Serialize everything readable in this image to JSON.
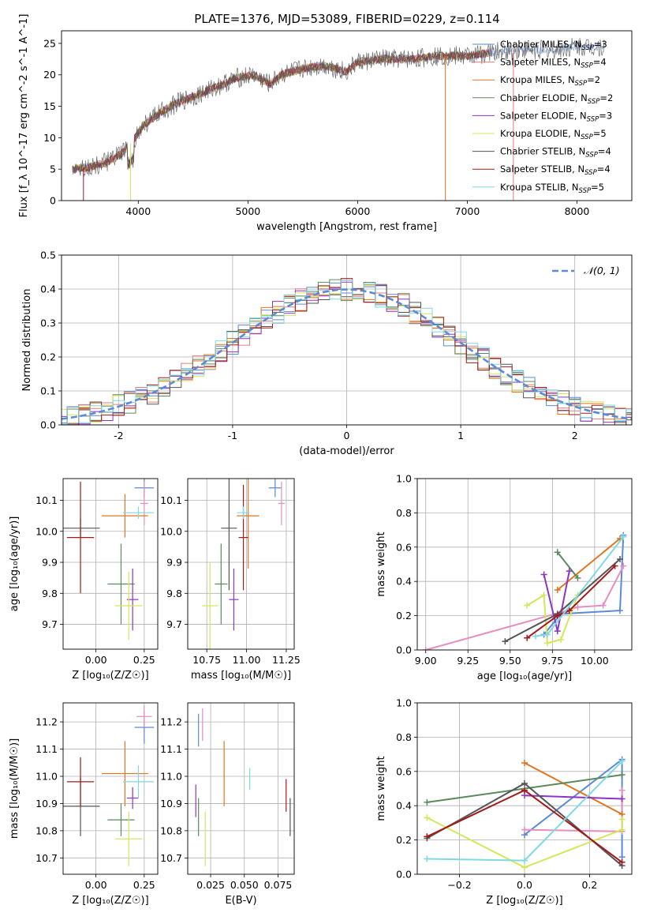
{
  "figure": {
    "title": "PLATE=1376, MJD=53089, FIBERID=0229, z=0.114"
  },
  "colors": {
    "Chabrier MILES": "#5b8ad6",
    "Salpeter MILES": "#e57c7c",
    "Kroupa MILES": "#e0761f",
    "Chabrier ELODIE": "#5a8a5c",
    "Salpeter ELODIE": "#8e34c4",
    "Kroupa ELODIE": "#d4e65b",
    "Chabrier STELIB": "#555555",
    "Salpeter STELIB": "#a31a1a",
    "Kroupa STELIB": "#7fd9e0",
    "pink": "#e58fc0",
    "normal": "#5b8ad6",
    "grid": "#b0b0b0"
  },
  "chart_data": [
    {
      "id": "spectrum",
      "type": "line",
      "xlabel": "wavelength [Angstrom, rest frame]",
      "ylabel": "Flux [f_λ 10^-17 erg cm^-2 s^-1 A^-1]",
      "xlim": [
        3300,
        8500
      ],
      "ylim": [
        0,
        27
      ],
      "xticks": [
        4000,
        5000,
        6000,
        7000,
        8000
      ],
      "yticks": [
        0,
        5,
        10,
        15,
        20,
        25
      ],
      "grid": false,
      "legend_position": "top-right",
      "legend": [
        {
          "label": "Chabrier MILES, N_SSP=3",
          "color_key": "Chabrier MILES"
        },
        {
          "label": "Salpeter MILES, N_SSP=4",
          "color_key": "Salpeter MILES"
        },
        {
          "label": "Kroupa MILES, N_SSP=2",
          "color_key": "Kroupa MILES"
        },
        {
          "label": "Chabrier ELODIE, N_SSP=2",
          "color_key": "Chabrier ELODIE"
        },
        {
          "label": "Salpeter ELODIE, N_SSP=3",
          "color_key": "Salpeter ELODIE"
        },
        {
          "label": "Kroupa ELODIE, N_SSP=5",
          "color_key": "Kroupa ELODIE"
        },
        {
          "label": "Chabrier STELIB, N_SSP=4",
          "color_key": "Chabrier STELIB"
        },
        {
          "label": "Salpeter STELIB, N_SSP=4",
          "color_key": "Salpeter STELIB"
        },
        {
          "label": "Kroupa STELIB, N_SSP=5",
          "color_key": "Kroupa STELIB"
        }
      ],
      "continuum": [
        [
          3400,
          5.0
        ],
        [
          3550,
          5.3
        ],
        [
          3700,
          6.0
        ],
        [
          3850,
          7.5
        ],
        [
          3950,
          9.5
        ],
        [
          4050,
          12.0
        ],
        [
          4200,
          14.0
        ],
        [
          4350,
          15.5
        ],
        [
          4500,
          16.5
        ],
        [
          4700,
          18.0
        ],
        [
          4900,
          19.5
        ],
        [
          5050,
          20.0
        ],
        [
          5200,
          18.5
        ],
        [
          5300,
          20.0
        ],
        [
          5500,
          21.0
        ],
        [
          5700,
          21.5
        ],
        [
          5900,
          20.5
        ],
        [
          6000,
          22.0
        ],
        [
          6200,
          22.5
        ],
        [
          6500,
          22.5
        ],
        [
          6700,
          23.0
        ],
        [
          7000,
          23.0
        ],
        [
          7200,
          23.5
        ],
        [
          7500,
          24.0
        ],
        [
          7800,
          24.0
        ],
        [
          8000,
          24.5
        ],
        [
          8250,
          24.5
        ]
      ],
      "spectrum_range": [
        3400,
        8250
      ]
    },
    {
      "id": "residuals",
      "type": "step-histogram",
      "xlabel": "(data-model)/error",
      "ylabel": "Normed distribution",
      "xlim": [
        -2.5,
        2.5
      ],
      "ylim": [
        0,
        0.5
      ],
      "xticks": [
        -2,
        -1,
        0,
        1,
        2
      ],
      "yticks": [
        0.0,
        0.1,
        0.2,
        0.3,
        0.4,
        0.5
      ],
      "grid": true,
      "legend_position": "top-right",
      "legend": [
        {
          "label": "𝒩(0, 1)",
          "color_key": "normal",
          "style": "dashed"
        }
      ],
      "series": [
        {
          "name": "Chabrier MILES",
          "color_key": "Chabrier MILES"
        },
        {
          "name": "Salpeter MILES",
          "color_key": "Salpeter MILES"
        },
        {
          "name": "Kroupa MILES",
          "color_key": "Kroupa MILES"
        },
        {
          "name": "Chabrier ELODIE",
          "color_key": "Chabrier ELODIE"
        },
        {
          "name": "Salpeter ELODIE",
          "color_key": "Salpeter ELODIE"
        },
        {
          "name": "Kroupa ELODIE",
          "color_key": "Kroupa ELODIE"
        },
        {
          "name": "Chabrier STELIB",
          "color_key": "Chabrier STELIB"
        },
        {
          "name": "Salpeter STELIB",
          "color_key": "Salpeter STELIB"
        },
        {
          "name": "Kroupa STELIB",
          "color_key": "Kroupa STELIB"
        }
      ],
      "bin_width": 0.1
    },
    {
      "id": "age_vs_Z",
      "type": "scatter",
      "xlabel": "Z [log₁₀(Z/Z☉)]",
      "ylabel": "age  [log₁₀(age/yr)]",
      "xlim": [
        -0.17,
        0.32
      ],
      "ylim": [
        9.62,
        10.17
      ],
      "xticks": [
        0.0,
        0.25
      ],
      "xticklabels": [
        "0.00",
        "0.25"
      ],
      "yticks": [
        9.7,
        9.8,
        9.9,
        10.0,
        10.1
      ],
      "grid": true,
      "points": [
        {
          "x": 0.25,
          "y": 10.14,
          "xerr": 0.05,
          "yerr": 0.03,
          "color_key": "Chabrier MILES"
        },
        {
          "x": 0.25,
          "y": 10.09,
          "xerr": 0.02,
          "yerr": 0.07,
          "color_key": "pink"
        },
        {
          "x": 0.15,
          "y": 10.05,
          "xerr": 0.12,
          "yerr": 0.07,
          "color_key": "Kroupa MILES"
        },
        {
          "x": 0.13,
          "y": 9.83,
          "xerr": 0.07,
          "yerr": 0.13,
          "color_key": "Chabrier ELODIE"
        },
        {
          "x": 0.19,
          "y": 9.78,
          "xerr": 0.03,
          "yerr": 0.1,
          "color_key": "Salpeter ELODIE"
        },
        {
          "x": 0.17,
          "y": 9.76,
          "xerr": 0.07,
          "yerr": 0.11,
          "color_key": "Kroupa ELODIE"
        },
        {
          "x": -0.08,
          "y": 10.01,
          "xerr": 0.1,
          "yerr": 0.03,
          "color_key": "Chabrier STELIB"
        },
        {
          "x": -0.08,
          "y": 9.98,
          "xerr": 0.07,
          "yerr": 0.18,
          "color_key": "Salpeter STELIB"
        },
        {
          "x": 0.22,
          "y": 10.06,
          "xerr": 0.08,
          "yerr": 0.02,
          "color_key": "Kroupa STELIB"
        }
      ]
    },
    {
      "id": "age_vs_mass",
      "type": "scatter",
      "xlabel": "mass [log₁₀(M/M☉)]",
      "ylabel": "",
      "xlim": [
        10.63,
        11.3
      ],
      "ylim": [
        9.62,
        10.17
      ],
      "xticks": [
        10.75,
        11.0,
        11.25
      ],
      "xticklabels": [
        "10.75",
        "11.00",
        "11.25"
      ],
      "yticks": [
        9.7,
        9.8,
        9.9,
        10.0,
        10.1
      ],
      "grid": true,
      "points": [
        {
          "x": 11.18,
          "y": 10.14,
          "xerr": 0.04,
          "yerr": 0.03,
          "color_key": "Chabrier MILES"
        },
        {
          "x": 11.22,
          "y": 10.09,
          "xerr": 0.02,
          "yerr": 0.07,
          "color_key": "pink"
        },
        {
          "x": 11.01,
          "y": 10.05,
          "xerr": 0.07,
          "yerr": 0.17,
          "color_key": "Kroupa MILES"
        },
        {
          "x": 10.84,
          "y": 9.83,
          "xerr": 0.04,
          "yerr": 0.13,
          "color_key": "Chabrier ELODIE"
        },
        {
          "x": 10.92,
          "y": 9.78,
          "xerr": 0.03,
          "yerr": 0.1,
          "color_key": "Salpeter ELODIE"
        },
        {
          "x": 10.77,
          "y": 9.76,
          "xerr": 0.05,
          "yerr": 0.14,
          "color_key": "Kroupa ELODIE"
        },
        {
          "x": 10.89,
          "y": 10.01,
          "xerr": 0.05,
          "yerr": 0.2,
          "color_key": "Chabrier STELIB"
        },
        {
          "x": 10.98,
          "y": 9.98,
          "xerr": 0.03,
          "yerr": 0.17,
          "color_key": "Salpeter STELIB"
        },
        {
          "x": 10.98,
          "y": 10.06,
          "xerr": 0.04,
          "yerr": 0.02,
          "color_key": "Kroupa STELIB"
        }
      ]
    },
    {
      "id": "weight_vs_age",
      "type": "line",
      "xlabel": "age  [log₁₀(age/yr)]",
      "ylabel": "mass weight",
      "xlim": [
        8.95,
        10.22
      ],
      "ylim": [
        0,
        1
      ],
      "xticks": [
        9.0,
        9.25,
        9.5,
        9.75,
        10.0
      ],
      "xticklabels": [
        "9.00",
        "9.25",
        "9.50",
        "9.75",
        "10.00"
      ],
      "yticks": [
        0.0,
        0.2,
        0.4,
        0.6,
        0.8,
        1.0
      ],
      "grid": true,
      "series": [
        {
          "name": "Chabrier MILES",
          "color_key": "Chabrier MILES",
          "x": [
            9.7,
            9.8,
            10.15,
            10.17
          ],
          "y": [
            0.09,
            0.21,
            0.23,
            0.67
          ]
        },
        {
          "name": "Pink",
          "color_key": "pink",
          "x": [
            9.0,
            9.8,
            9.9,
            10.05,
            10.17
          ],
          "y": [
            0.0,
            0.22,
            0.25,
            0.26,
            0.49
          ]
        },
        {
          "name": "Kroupa MILES",
          "color_key": "Kroupa MILES",
          "x": [
            9.78,
            10.15
          ],
          "y": [
            0.35,
            0.65
          ]
        },
        {
          "name": "Chabrier ELODIE",
          "color_key": "Chabrier ELODIE",
          "x": [
            9.78,
            9.9
          ],
          "y": [
            0.57,
            0.42
          ]
        },
        {
          "name": "Salpeter ELODIE",
          "color_key": "Salpeter ELODIE",
          "x": [
            9.7,
            9.78,
            9.85
          ],
          "y": [
            0.44,
            0.11,
            0.46
          ]
        },
        {
          "name": "Kroupa ELODIE",
          "color_key": "Kroupa ELODIE",
          "x": [
            9.6,
            9.7,
            9.72,
            9.8,
            9.9
          ],
          "y": [
            0.26,
            0.32,
            0.04,
            0.06,
            0.32
          ]
        },
        {
          "name": "Chabrier STELIB",
          "color_key": "Chabrier STELIB",
          "x": [
            9.47,
            9.78,
            10.15
          ],
          "y": [
            0.05,
            0.21,
            0.53
          ]
        },
        {
          "name": "Salpeter STELIB",
          "color_key": "Salpeter STELIB",
          "x": [
            9.6,
            9.78,
            9.85,
            10.12
          ],
          "y": [
            0.07,
            0.2,
            0.23,
            0.49
          ]
        },
        {
          "name": "Kroupa STELIB",
          "color_key": "Kroupa STELIB",
          "x": [
            9.65,
            9.72,
            10.17
          ],
          "y": [
            0.08,
            0.09,
            0.66
          ]
        }
      ]
    },
    {
      "id": "mass_vs_Z",
      "type": "scatter",
      "xlabel": "Z [log₁₀(Z/Z☉)]",
      "ylabel": "mass [log₁₀(M/M☉)]",
      "xlim": [
        -0.17,
        0.32
      ],
      "ylim": [
        10.64,
        11.27
      ],
      "xticks": [
        0.0,
        0.25
      ],
      "xticklabels": [
        "0.00",
        "0.25"
      ],
      "yticks": [
        10.7,
        10.8,
        10.9,
        11.0,
        11.1,
        11.2
      ],
      "grid": true,
      "points": [
        {
          "x": 0.25,
          "y": 11.18,
          "xerr": 0.05,
          "yerr": 0.06,
          "color_key": "Chabrier MILES"
        },
        {
          "x": 0.25,
          "y": 11.22,
          "xerr": 0.04,
          "yerr": 0.04,
          "color_key": "pink"
        },
        {
          "x": 0.15,
          "y": 11.01,
          "xerr": 0.12,
          "yerr": 0.12,
          "color_key": "Kroupa MILES"
        },
        {
          "x": 0.13,
          "y": 10.84,
          "xerr": 0.07,
          "yerr": 0.06,
          "color_key": "Chabrier ELODIE"
        },
        {
          "x": 0.19,
          "y": 10.92,
          "xerr": 0.03,
          "yerr": 0.04,
          "color_key": "Salpeter ELODIE"
        },
        {
          "x": 0.17,
          "y": 10.77,
          "xerr": 0.07,
          "yerr": 0.1,
          "color_key": "Kroupa ELODIE"
        },
        {
          "x": -0.08,
          "y": 10.89,
          "xerr": 0.1,
          "yerr": 0.11,
          "color_key": "Chabrier STELIB"
        },
        {
          "x": -0.08,
          "y": 10.98,
          "xerr": 0.07,
          "yerr": 0.09,
          "color_key": "Salpeter STELIB"
        },
        {
          "x": 0.22,
          "y": 10.98,
          "xerr": 0.08,
          "yerr": 0.06,
          "color_key": "Kroupa STELIB"
        }
      ]
    },
    {
      "id": "mass_vs_EBV",
      "type": "errorbar",
      "xlabel": "E(B-V)",
      "ylabel": "",
      "xlim": [
        0.008,
        0.087
      ],
      "ylim": [
        10.64,
        11.27
      ],
      "xticks": [
        0.025,
        0.05,
        0.075
      ],
      "xticklabels": [
        "0.025",
        "0.050",
        "0.075"
      ],
      "yticks": [
        10.7,
        10.8,
        10.9,
        11.0,
        11.1,
        11.2
      ],
      "grid": true,
      "points": [
        {
          "x": 0.016,
          "y": 11.17,
          "yerr": 0.06,
          "color_key": "Chabrier MILES"
        },
        {
          "x": 0.019,
          "y": 11.19,
          "yerr": 0.06,
          "color_key": "pink"
        },
        {
          "x": 0.035,
          "y": 11.01,
          "yerr": 0.12,
          "color_key": "Kroupa MILES"
        },
        {
          "x": 0.016,
          "y": 10.85,
          "yerr": 0.07,
          "color_key": "Chabrier ELODIE"
        },
        {
          "x": 0.014,
          "y": 10.91,
          "yerr": 0.06,
          "color_key": "Salpeter ELODIE"
        },
        {
          "x": 0.021,
          "y": 10.77,
          "yerr": 0.1,
          "color_key": "Kroupa ELODIE"
        },
        {
          "x": 0.084,
          "y": 10.85,
          "yerr": 0.07,
          "color_key": "Chabrier STELIB"
        },
        {
          "x": 0.081,
          "y": 10.93,
          "yerr": 0.06,
          "color_key": "Salpeter STELIB"
        },
        {
          "x": 0.054,
          "y": 10.99,
          "yerr": 0.04,
          "color_key": "Kroupa STELIB"
        }
      ]
    },
    {
      "id": "weight_vs_Z",
      "type": "line",
      "xlabel": "Z [log₁₀(Z/Z☉)]",
      "ylabel": "mass weight",
      "xlim": [
        -0.33,
        0.33
      ],
      "ylim": [
        0,
        1
      ],
      "xticks": [
        -0.2,
        0.0,
        0.2
      ],
      "xticklabels": [
        "−0.2",
        "0.0",
        "0.2"
      ],
      "yticks": [
        0.0,
        0.2,
        0.4,
        0.6,
        0.8,
        1.0
      ],
      "grid": true,
      "series": [
        {
          "name": "Chabrier MILES",
          "color_key": "Chabrier MILES",
          "x": [
            0.0,
            0.3,
            0.3
          ],
          "y": [
            0.23,
            0.67,
            0.1
          ]
        },
        {
          "name": "Pink",
          "color_key": "pink",
          "x": [
            0.0,
            0.3,
            0.3
          ],
          "y": [
            0.26,
            0.25,
            0.49
          ]
        },
        {
          "name": "Kroupa MILES",
          "color_key": "Kroupa MILES",
          "x": [
            0.0,
            0.3
          ],
          "y": [
            0.65,
            0.35
          ]
        },
        {
          "name": "Chabrier ELODIE",
          "color_key": "Chabrier ELODIE",
          "x": [
            -0.3,
            0.3
          ],
          "y": [
            0.42,
            0.58
          ]
        },
        {
          "name": "Salpeter ELODIE",
          "color_key": "Salpeter ELODIE",
          "x": [
            0.0,
            0.3
          ],
          "y": [
            0.46,
            0.44
          ]
        },
        {
          "name": "Kroupa ELODIE",
          "color_key": "Kroupa ELODIE",
          "x": [
            -0.3,
            0.0,
            0.3,
            0.3
          ],
          "y": [
            0.33,
            0.04,
            0.26,
            0.32
          ]
        },
        {
          "name": "Chabrier STELIB",
          "color_key": "Chabrier STELIB",
          "x": [
            -0.3,
            0.0,
            0.3
          ],
          "y": [
            0.21,
            0.53,
            0.05
          ]
        },
        {
          "name": "Salpeter STELIB",
          "color_key": "Salpeter STELIB",
          "x": [
            -0.3,
            0.0,
            0.3
          ],
          "y": [
            0.22,
            0.49,
            0.07
          ]
        },
        {
          "name": "Kroupa STELIB",
          "color_key": "Kroupa STELIB",
          "x": [
            -0.3,
            0.0,
            0.3
          ],
          "y": [
            0.09,
            0.08,
            0.66
          ]
        }
      ]
    }
  ]
}
